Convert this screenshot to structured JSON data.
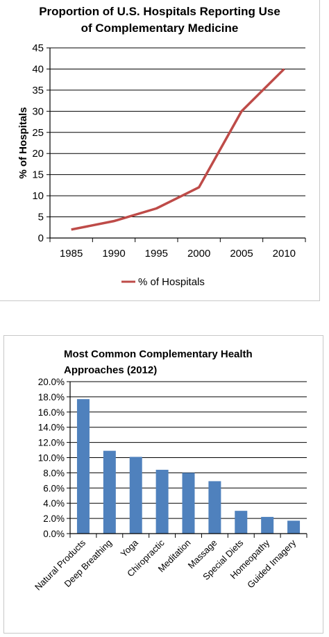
{
  "chart_data": [
    {
      "type": "line",
      "title_lines": [
        "Proportion of U.S. Hospitals Reporting Use",
        "of Complementary Medicine"
      ],
      "xlabel": "",
      "ylabel": "% of Hospitals",
      "x": [
        "1985",
        "1990",
        "1995",
        "2000",
        "2005",
        "2010"
      ],
      "series": [
        {
          "name": "% of Hospitals",
          "values": [
            2,
            4,
            7,
            12,
            30,
            40
          ]
        }
      ],
      "yticks": [
        "0",
        "5",
        "10",
        "15",
        "20",
        "25",
        "30",
        "35",
        "40",
        "45"
      ],
      "ylim": [
        0,
        45
      ],
      "grid": true,
      "legend": "bottom",
      "color": "#be4b48"
    },
    {
      "type": "bar",
      "title_lines": [
        "Most Common Complementary Health",
        "Approaches (2012)"
      ],
      "xlabel": "",
      "ylabel": "",
      "categories": [
        "Natural Products",
        "Deep Breathing",
        "Yoga",
        "Chiropractic",
        "Meditation",
        "Massage",
        "Special Diets",
        "Homeopathy",
        "Guided Imagery"
      ],
      "values": [
        17.7,
        10.9,
        10.1,
        8.4,
        8.0,
        6.9,
        3.0,
        2.2,
        1.7
      ],
      "yticks": [
        "0.0%",
        "2.0%",
        "4.0%",
        "6.0%",
        "8.0%",
        "10.0%",
        "12.0%",
        "14.0%",
        "16.0%",
        "18.0%",
        "20.0%"
      ],
      "ylim": [
        0,
        20
      ],
      "grid": true,
      "legend": "none",
      "color": "#4f81bd"
    }
  ]
}
